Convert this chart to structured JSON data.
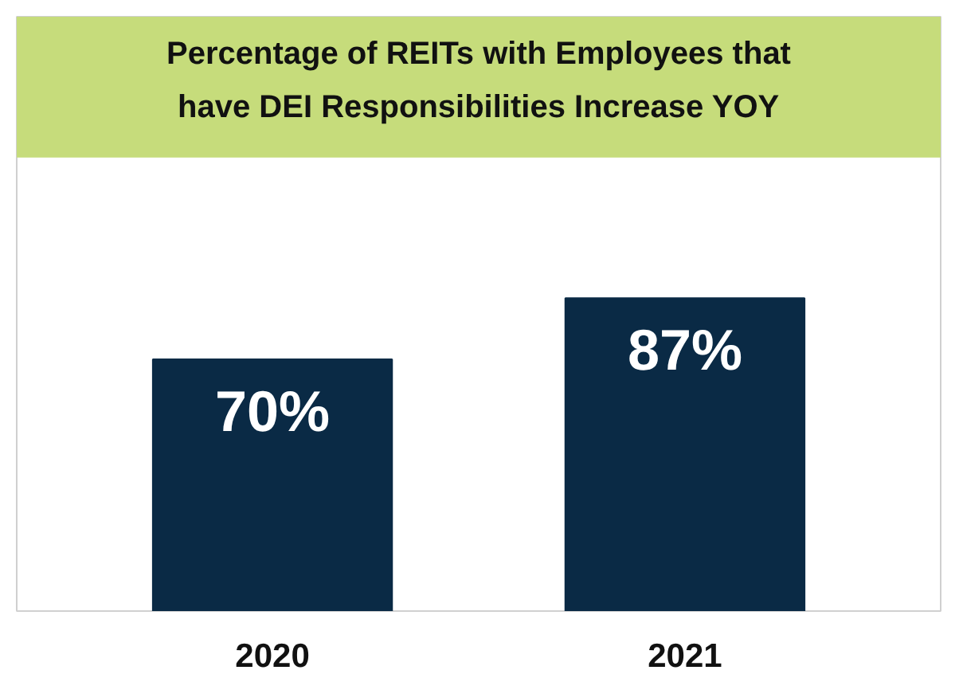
{
  "chart_data": {
    "type": "bar",
    "title": "Percentage of REITs with Employees that have DEI Responsibilities Increase YOY",
    "categories": [
      "2020",
      "2021"
    ],
    "values": [
      70,
      87
    ],
    "value_labels": [
      "70%",
      "87%"
    ],
    "color": "#0a2a45",
    "grid": false
  }
}
